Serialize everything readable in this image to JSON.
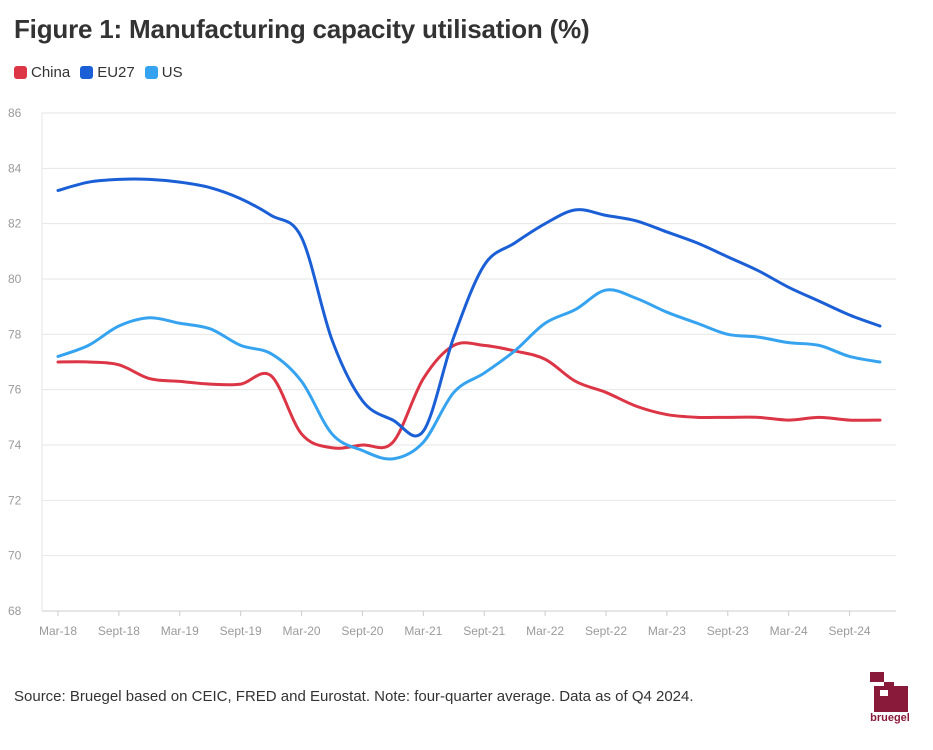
{
  "header": {
    "title": "Figure 1: Manufacturing capacity utilisation (%)"
  },
  "legend": {
    "items": [
      {
        "label": "China",
        "color": "#dc3545"
      },
      {
        "label": "EU27",
        "color": "#1a5fd6"
      },
      {
        "label": "US",
        "color": "#35a3f0"
      }
    ]
  },
  "footer": {
    "source": "Source: Bruegel based on CEIC, FRED and Eurostat. Note: four-quarter average. Data as of Q4 2024.",
    "logo_text": "bruegel"
  },
  "chart_data": {
    "type": "line",
    "title": "Figure 1: Manufacturing capacity utilisation (%)",
    "xlabel": "",
    "ylabel": "",
    "ylim": [
      68,
      86
    ],
    "yticks": [
      68,
      70,
      72,
      74,
      76,
      78,
      80,
      82,
      84,
      86
    ],
    "grid": true,
    "legend_position": "top-left",
    "x": [
      "Mar-18",
      "Jun-18",
      "Sept-18",
      "Dec-18",
      "Mar-19",
      "Jun-19",
      "Sept-19",
      "Dec-19",
      "Mar-20",
      "Jun-20",
      "Sept-20",
      "Dec-20",
      "Mar-21",
      "Jun-21",
      "Sept-21",
      "Dec-21",
      "Mar-22",
      "Jun-22",
      "Sept-22",
      "Dec-22",
      "Mar-23",
      "Jun-23",
      "Sept-23",
      "Dec-23",
      "Mar-24",
      "Jun-24",
      "Sept-24",
      "Dec-24"
    ],
    "xtick_labels": [
      "Mar-18",
      "Sept-18",
      "Mar-19",
      "Sept-19",
      "Mar-20",
      "Sept-20",
      "Mar-21",
      "Sept-21",
      "Mar-22",
      "Sept-22",
      "Mar-23",
      "Sept-23",
      "Mar-24",
      "Sept-24"
    ],
    "series": [
      {
        "name": "China",
        "color": "#dc3545",
        "values": [
          77.0,
          77.0,
          76.9,
          76.4,
          76.3,
          76.2,
          76.2,
          76.5,
          74.4,
          73.9,
          74.0,
          74.1,
          76.4,
          77.6,
          77.6,
          77.4,
          77.1,
          76.3,
          75.9,
          75.4,
          75.1,
          75.0,
          75.0,
          75.0,
          74.9,
          75.0,
          74.9,
          74.9
        ]
      },
      {
        "name": "EU27",
        "color": "#1a5fd6",
        "values": [
          83.2,
          83.5,
          83.6,
          83.6,
          83.5,
          83.3,
          82.9,
          82.3,
          81.5,
          77.8,
          75.6,
          74.9,
          74.5,
          77.9,
          80.5,
          81.3,
          82.0,
          82.5,
          82.3,
          82.1,
          81.7,
          81.3,
          80.8,
          80.3,
          79.7,
          79.2,
          78.7,
          78.3
        ]
      },
      {
        "name": "US",
        "color": "#35a3f0",
        "values": [
          77.2,
          77.6,
          78.3,
          78.6,
          78.4,
          78.2,
          77.6,
          77.3,
          76.3,
          74.4,
          73.8,
          73.5,
          74.1,
          75.9,
          76.6,
          77.4,
          78.4,
          78.9,
          79.6,
          79.3,
          78.8,
          78.4,
          78.0,
          77.9,
          77.7,
          77.6,
          77.2,
          77.0
        ]
      }
    ]
  }
}
